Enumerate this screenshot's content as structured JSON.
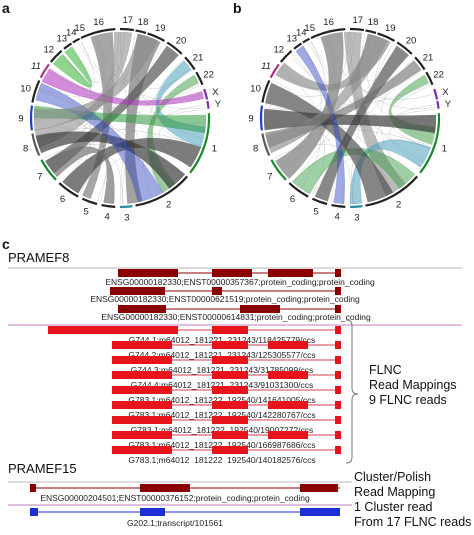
{
  "panels": {
    "a": {
      "letter": "a",
      "chromosomes": [
        "16",
        "17",
        "18",
        "19",
        "20",
        "21",
        "22",
        "X",
        "Y",
        "1",
        "2",
        "3",
        "4",
        "5",
        "6",
        "7",
        "8",
        "9",
        "10",
        "11",
        "12",
        "13",
        "14",
        "15"
      ]
    },
    "b": {
      "letter": "b",
      "chromosomes": [
        "16",
        "17",
        "18",
        "19",
        "20",
        "21",
        "22",
        "X",
        "Y",
        "1",
        "2",
        "3",
        "4",
        "5",
        "6",
        "7",
        "8",
        "9",
        "10",
        "11",
        "12",
        "13",
        "14",
        "15"
      ]
    },
    "c": {
      "letter": "c"
    }
  },
  "pramef8": {
    "title": "PRAMEF8",
    "annotations": [
      "ENSG00000182330;ENST00000357367;protein_coding;protein_coding",
      "ENSG00000182330;ENST00000621519;protein_coding;protein_coding",
      "ENSG00000182330;ENST00000614831;protein_coding;protein_coding"
    ],
    "reads": [
      "G744.1;m64012_181221_231243/118425779/ccs",
      "G744.2;m64012_181221_231243/125305577/ccs",
      "G744.3;m64012_181221_231243/31785099/ccs",
      "G744.4;m64012_181221_231243/91031300/ccs",
      "G783.1;m64012_181222_192540/141641005/ccs",
      "G783.1;m64012_181222_192540/142280767/ccs",
      "G783.1;m64012_181222_192540/19007272/ccs",
      "G783.1;m64012_181222_192540/166987686/ccs",
      "G783.1;m64012_181222_192540/140182576/ccs"
    ],
    "side_label": [
      "FLNC",
      "Read Mappings",
      "9 FLNC reads"
    ]
  },
  "pramef15": {
    "title": "PRAMEF15",
    "annotation": "ENSG00000204501;ENST00000376152;protein_coding;protein_coding",
    "read": "G202.1;transcript/101561",
    "side_label": [
      "Cluster/Polish",
      "Read Mapping",
      "1 Cluster read",
      "From 17 FLNC reads"
    ]
  },
  "colors": {
    "exon_dark": "#8b0000",
    "exon_red": "#e8141c",
    "intron_red": "#d04050",
    "exon_blue": "#1f2fd6",
    "separator": "#c080c0"
  }
}
